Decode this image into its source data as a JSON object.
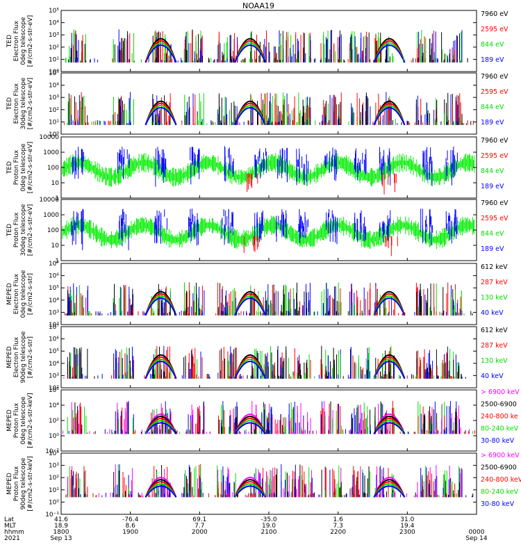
{
  "title": "NOAA19",
  "chart_data": [
    {
      "type": "scatter",
      "ylabel": [
        "TED",
        "Electron Flux",
        "0deg telescope",
        "[#/cm2-s-str-eV]"
      ],
      "yticks": [
        "10⁰",
        "10¹",
        "10²",
        "10³",
        "10⁴",
        "10⁵"
      ],
      "yscale": "log",
      "ylim": [
        1,
        100000
      ],
      "series": [
        {
          "name": "7960 eV",
          "color": "#000000"
        },
        {
          "name": "2595 eV",
          "color": "#ff0000"
        },
        {
          "name": "844 eV",
          "color": "#00dd00"
        },
        {
          "name": "189 eV",
          "color": "#0000ff"
        }
      ]
    },
    {
      "type": "scatter",
      "ylabel": [
        "TED",
        "Electron Flux",
        "30deg telescope",
        "[#/cm2-s-str-eV]"
      ],
      "yticks": [
        "10⁰",
        "10¹",
        "10²",
        "10³",
        "10⁴",
        "10⁵"
      ],
      "yscale": "log",
      "ylim": [
        1,
        100000
      ],
      "series": [
        {
          "name": "7960 eV",
          "color": "#000000"
        },
        {
          "name": "2595 eV",
          "color": "#ff0000"
        },
        {
          "name": "844 eV",
          "color": "#00dd00"
        },
        {
          "name": "189 eV",
          "color": "#0000ff"
        }
      ]
    },
    {
      "type": "scatter",
      "ylabel": [
        "TED",
        "Proton Flux",
        "0deg telescope",
        "[#/cm2-s-str-eV]"
      ],
      "yticks": [
        "1",
        "10",
        "100",
        "1000",
        "10000"
      ],
      "yscale": "log",
      "ylim": [
        1,
        10000
      ],
      "series": [
        {
          "name": "7960 eV",
          "color": "#000000"
        },
        {
          "name": "2595 eV",
          "color": "#ff0000"
        },
        {
          "name": "844 eV",
          "color": "#00dd00"
        },
        {
          "name": "189 eV",
          "color": "#0000ff"
        }
      ]
    },
    {
      "type": "scatter",
      "ylabel": [
        "TED",
        "Proton Flux",
        "30deg telescope",
        "[#/cm2-s-str-eV]"
      ],
      "yticks": [
        "1",
        "10",
        "100",
        "1000",
        "10000"
      ],
      "yscale": "log",
      "ylim": [
        1,
        10000
      ],
      "series": [
        {
          "name": "7960 eV",
          "color": "#000000"
        },
        {
          "name": "2595 eV",
          "color": "#ff0000"
        },
        {
          "name": "844 eV",
          "color": "#00dd00"
        },
        {
          "name": "189 eV",
          "color": "#0000ff"
        }
      ]
    },
    {
      "type": "scatter",
      "ylabel": [
        "MEPED",
        "Electron Flux",
        "0deg telescope",
        "[#/cm2-s-str]"
      ],
      "yticks": [
        "10²",
        "10³",
        "10⁴",
        "10⁵",
        "10⁶",
        "10⁷"
      ],
      "yscale": "log",
      "ylim": [
        100,
        10000000
      ],
      "series": [
        {
          "name": "612 keV",
          "color": "#000000"
        },
        {
          "name": "287 keV",
          "color": "#ff0000"
        },
        {
          "name": "130 keV",
          "color": "#00dd00"
        },
        {
          "name": "40 keV",
          "color": "#0000ff"
        }
      ]
    },
    {
      "type": "scatter",
      "ylabel": [
        "MEPED",
        "Electron Flux",
        "90deg telescope",
        "[#/cm2-s-str]"
      ],
      "yticks": [
        "10²",
        "10³",
        "10⁴",
        "10⁵",
        "10⁶",
        "10⁷"
      ],
      "yscale": "log",
      "ylim": [
        100,
        10000000
      ],
      "series": [
        {
          "name": "612 keV",
          "color": "#000000"
        },
        {
          "name": "287 keV",
          "color": "#ff0000"
        },
        {
          "name": "130 keV",
          "color": "#00dd00"
        },
        {
          "name": "40 keV",
          "color": "#0000ff"
        }
      ]
    },
    {
      "type": "scatter",
      "ylabel": [
        "MEPED",
        "Proton Flux",
        "0deg telescope",
        "[#/cm2-s-str-keV]"
      ],
      "yticks": [
        "10⁻²",
        "10⁰",
        "10²",
        "10⁴",
        "10⁶"
      ],
      "yscale": "log",
      "ylim": [
        0.01,
        1000000
      ],
      "series": [
        {
          "name": "> 6900 keV",
          "color": "#ff00ff"
        },
        {
          "name": "2500-6900",
          "color": "#000000"
        },
        {
          "name": "240-800 ke",
          "color": "#ff0000"
        },
        {
          "name": "80-240 keV",
          "color": "#00dd00"
        },
        {
          "name": "30-80 keV",
          "color": "#0000ff"
        }
      ]
    },
    {
      "type": "scatter",
      "ylabel": [
        "MEPED",
        "Proton Flux",
        "90deg telescope",
        "[#/cm2-s-str-keV]"
      ],
      "yticks": [
        "10⁻¹",
        "10⁰",
        "10¹",
        "10²",
        "10³",
        "10⁴"
      ],
      "yscale": "log",
      "ylim": [
        0.1,
        10000
      ],
      "series": [
        {
          "name": "> 6900 keV",
          "color": "#ff00ff"
        },
        {
          "name": "2500-6900",
          "color": "#000000"
        },
        {
          "name": "240-800 keV",
          "color": "#ff0000"
        },
        {
          "name": "80-240 keV",
          "color": "#00dd00"
        },
        {
          "name": "30-80 keV",
          "color": "#0000ff"
        }
      ]
    }
  ],
  "xaxis": {
    "row_labels": [
      "Lat",
      "MLT",
      "hhmm",
      "2021"
    ],
    "ticks": [
      {
        "time": "1800",
        "lat": "41.6",
        "mlt": "18.9",
        "date": "Sep 13"
      },
      {
        "time": "1900",
        "lat": "-76.4",
        "mlt": "8.6"
      },
      {
        "time": "2000",
        "lat": "69.1",
        "mlt": "7.7"
      },
      {
        "time": "2100",
        "lat": "-35.0",
        "mlt": "19.0"
      },
      {
        "time": "2200",
        "lat": "1.6",
        "mlt": "7.3"
      },
      {
        "time": "2300",
        "lat": "31.0",
        "mlt": "19.4"
      },
      {
        "time": "0000",
        "date": "Sep 14"
      }
    ]
  }
}
